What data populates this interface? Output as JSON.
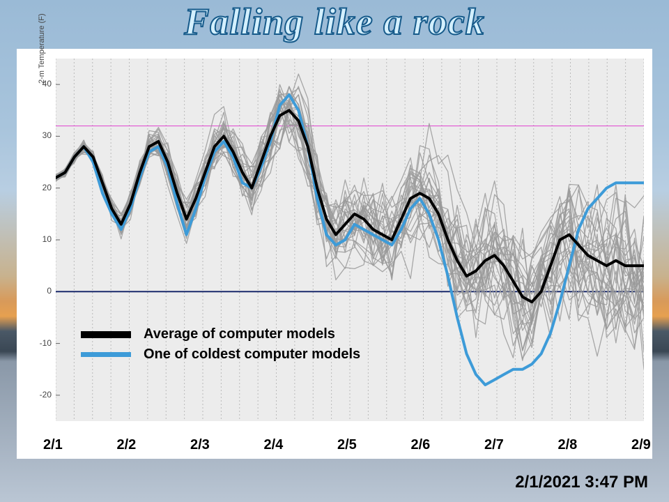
{
  "title": {
    "text": "Falling like a rock",
    "fontsize": 54
  },
  "timestamp": {
    "text": "2/1/2021 3:47 PM",
    "fontsize": 24
  },
  "chart": {
    "type": "line-ensemble",
    "background_color": "#ececec",
    "grid_color": "#bababa",
    "grid_dash": "2,3",
    "yaxis": {
      "label": "2-m Temperature (F)",
      "min": -25,
      "max": 45,
      "ticks": [
        -20,
        -10,
        0,
        10,
        20,
        30,
        40
      ],
      "tick_fontsize": 12
    },
    "xaxis": {
      "tick_labels": [
        "2/1",
        "2/2",
        "2/3",
        "2/4",
        "2/5",
        "2/6",
        "2/7",
        "2/8",
        "2/9"
      ],
      "tick_fontsize": 20,
      "grid_lines": 33
    },
    "reference_lines": [
      {
        "y": 32,
        "color": "#e040d0",
        "width": 1
      },
      {
        "y": 0,
        "color": "#1a2a6b",
        "width": 2
      }
    ],
    "series_avg": {
      "color": "#000000",
      "width": 4,
      "values": [
        22,
        23,
        26,
        28,
        26,
        21,
        16,
        13,
        17,
        23,
        28,
        29,
        25,
        19,
        14,
        18,
        23,
        28,
        30,
        27,
        23,
        20,
        25,
        30,
        34,
        35,
        33,
        28,
        20,
        14,
        11,
        13,
        15,
        14,
        12,
        11,
        10,
        14,
        18,
        19,
        18,
        15,
        10,
        6,
        3,
        4,
        6,
        7,
        5,
        2,
        -1,
        -2,
        0,
        5,
        10,
        11,
        9,
        7,
        6,
        5,
        6,
        5,
        5,
        5
      ]
    },
    "series_cold": {
      "color": "#3d9bd8",
      "width": 4,
      "values": [
        22,
        23,
        26,
        28,
        25,
        19,
        15,
        12,
        16,
        22,
        27,
        28,
        24,
        17,
        11,
        16,
        22,
        27,
        29,
        26,
        21,
        20,
        24,
        29,
        36,
        38,
        35,
        28,
        18,
        11,
        9,
        10,
        13,
        12,
        11,
        10,
        9,
        12,
        16,
        18,
        15,
        10,
        3,
        -5,
        -12,
        -16,
        -18,
        -17,
        -16,
        -15,
        -15,
        -14,
        -12,
        -8,
        -2,
        5,
        12,
        16,
        18,
        20,
        21,
        21,
        21,
        21
      ]
    },
    "ensemble": {
      "color": "#9a9a9a",
      "width": 1.3,
      "opacity": 0.85,
      "noise_seeds": [
        1,
        2,
        3,
        4,
        5,
        6,
        7,
        8,
        9,
        10,
        11,
        12,
        13,
        14,
        15,
        16,
        17,
        18,
        19,
        20,
        21,
        22,
        23,
        24,
        25,
        26,
        27,
        28
      ]
    },
    "legend": {
      "items": [
        {
          "label": "Average of computer models",
          "color": "#000000",
          "height": 10
        },
        {
          "label": "One of coldest computer models",
          "color": "#3d9bd8",
          "height": 7
        }
      ],
      "fontsize": 20
    }
  }
}
